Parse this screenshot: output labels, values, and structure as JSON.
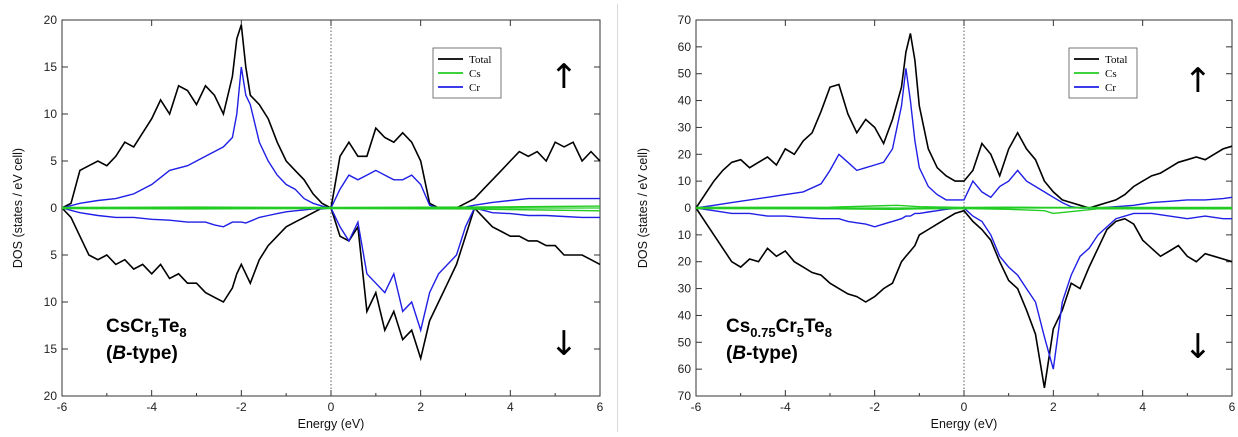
{
  "chart_data": [
    {
      "type": "line",
      "formula": {
        "base": "CsCr",
        "sub1": "5",
        "mid": "Te",
        "sub2": "8",
        "extra": ""
      },
      "subtitle": {
        "open": "(",
        "italic": "B",
        "rest": "-type)"
      },
      "xlabel": "Energy (eV)",
      "ylabel": "DOS (states / eV cell)",
      "xlim": [
        -6,
        6
      ],
      "ylim": [
        -20,
        20
      ],
      "x_ticks": [
        "-6",
        "-4",
        "-2",
        "0",
        "2",
        "4",
        "6"
      ],
      "y_ticks": [
        "20",
        "15",
        "10",
        "5",
        "0",
        "5",
        "10",
        "15",
        "20"
      ],
      "legend": [
        "Total",
        "Cs",
        "Cr"
      ],
      "spin_up_arrow": "↑",
      "spin_down_arrow": "↓",
      "colors": {
        "Total": "#000000",
        "Cs": "#22cc22",
        "Cr": "#1f1fe6"
      },
      "series": [
        {
          "name": "Total",
          "x": [
            -6,
            -5.8,
            -5.6,
            -5.4,
            -5.2,
            -5,
            -4.8,
            -4.6,
            -4.4,
            -4.2,
            -4,
            -3.8,
            -3.6,
            -3.4,
            -3.2,
            -3,
            -2.8,
            -2.6,
            -2.4,
            -2.2,
            -2.1,
            -2,
            -1.9,
            -1.8,
            -1.6,
            -1.4,
            -1.2,
            -1,
            -0.8,
            -0.6,
            -0.4,
            -0.2,
            0,
            0.2,
            0.4,
            0.6,
            0.8,
            1,
            1.2,
            1.4,
            1.6,
            1.8,
            2,
            2.2,
            2.4,
            2.6,
            2.8,
            3,
            3.2,
            3.4,
            3.6,
            3.8,
            4,
            4.2,
            4.4,
            4.6,
            4.8,
            5,
            5.2,
            5.4,
            5.6,
            5.8,
            6
          ],
          "up": [
            0,
            0.5,
            4,
            4.5,
            5,
            4.5,
            5.5,
            7,
            6.5,
            8,
            9.5,
            11.5,
            10,
            13,
            12.5,
            11,
            13,
            12,
            10,
            14,
            18,
            19.5,
            15,
            12,
            11,
            9.5,
            7,
            5,
            4,
            3,
            1.5,
            0.5,
            0,
            5.5,
            7,
            5.5,
            5.5,
            8.5,
            7.5,
            7,
            8,
            7,
            5,
            0.5,
            0,
            0,
            0,
            0.5,
            1,
            2,
            3,
            4,
            5,
            6,
            5.5,
            6,
            5,
            7,
            6.5,
            7,
            5,
            6,
            5
          ],
          "down": [
            0,
            -1,
            -3,
            -5,
            -5.5,
            -5,
            -6,
            -5.5,
            -6.5,
            -6,
            -7,
            -6,
            -7.5,
            -7,
            -8,
            -8,
            -9,
            -9.5,
            -10,
            -8.5,
            -7,
            -6,
            -7,
            -8,
            -5.5,
            -4,
            -3,
            -2,
            -1.5,
            -1,
            -0.5,
            0,
            0,
            -3,
            -3.5,
            -2,
            -11,
            -9,
            -13,
            -11,
            -14,
            -13,
            -16,
            -12,
            -10,
            -8,
            -6,
            -3,
            0,
            -1,
            -2,
            -2.5,
            -3,
            -3,
            -3.5,
            -3.5,
            -4,
            -4,
            -5,
            -5,
            -5,
            -5.5,
            -6
          ]
        },
        {
          "name": "Cs",
          "x": [
            -6,
            -3,
            0,
            3,
            6
          ],
          "up": [
            0.05,
            0.1,
            0.05,
            0.1,
            0.2
          ],
          "down": [
            -0.05,
            -0.1,
            -0.05,
            -0.1,
            -0.3
          ]
        },
        {
          "name": "Cr",
          "x": [
            -6,
            -5.6,
            -5.2,
            -4.8,
            -4.4,
            -4,
            -3.6,
            -3.2,
            -2.8,
            -2.6,
            -2.4,
            -2.2,
            -2.1,
            -2,
            -1.9,
            -1.8,
            -1.6,
            -1.4,
            -1.2,
            -1,
            -0.8,
            -0.6,
            -0.4,
            -0.2,
            0,
            0.2,
            0.4,
            0.6,
            0.8,
            1,
            1.2,
            1.4,
            1.6,
            1.8,
            2,
            2.2,
            2.4,
            2.6,
            2.8,
            3,
            3.2,
            3.6,
            4,
            4.4,
            4.8,
            5.2,
            5.6,
            6
          ],
          "up": [
            0,
            0.5,
            0.8,
            1,
            1.5,
            2.5,
            4,
            4.5,
            5.5,
            6,
            6.5,
            7.5,
            10,
            15,
            12,
            11,
            7,
            5,
            3.5,
            2.5,
            2,
            1,
            0.5,
            0.2,
            0,
            2,
            3.5,
            3,
            3.5,
            4,
            3.5,
            3,
            3,
            3.5,
            2.5,
            0.3,
            0,
            0,
            0,
            0.1,
            0.3,
            0.6,
            0.8,
            1,
            1,
            1,
            1,
            1
          ],
          "down": [
            0,
            -0.5,
            -0.8,
            -1,
            -1,
            -1.2,
            -1.3,
            -1.5,
            -1.5,
            -1.8,
            -2,
            -1.5,
            -1.5,
            -1.5,
            -1.6,
            -1.4,
            -1,
            -0.8,
            -0.6,
            -0.4,
            -0.3,
            -0.2,
            -0.1,
            -0.1,
            0,
            -2,
            -3.5,
            -1.5,
            -7,
            -8,
            -9,
            -7,
            -11,
            -10,
            -13,
            -9,
            -7,
            -6,
            -5,
            -2,
            0,
            -0.5,
            -0.6,
            -0.8,
            -0.8,
            -0.9,
            -1,
            -1
          ]
        }
      ]
    },
    {
      "type": "line",
      "formula": {
        "base": "Cs",
        "sub1": "0.75",
        "mid": "Cr",
        "sub2": "5",
        "extra": "Te",
        "sub3": "8"
      },
      "subtitle": {
        "open": "(",
        "italic": "B",
        "rest": "-type)"
      },
      "xlabel": "Energy (eV)",
      "ylabel": "DOS (states / eV cell)",
      "xlim": [
        -6,
        6
      ],
      "ylim": [
        -70,
        70
      ],
      "x_ticks": [
        "-6",
        "-4",
        "-2",
        "0",
        "2",
        "4",
        "6"
      ],
      "y_ticks": [
        "70",
        "60",
        "50",
        "40",
        "30",
        "20",
        "10",
        "0",
        "10",
        "20",
        "30",
        "40",
        "50",
        "60",
        "70"
      ],
      "legend": [
        "Total",
        "Cs",
        "Cr"
      ],
      "spin_up_arrow": "↑",
      "spin_down_arrow": "↓",
      "colors": {
        "Total": "#000000",
        "Cs": "#22cc22",
        "Cr": "#1f1fe6"
      },
      "series": [
        {
          "name": "Total",
          "x": [
            -6,
            -5.8,
            -5.6,
            -5.4,
            -5.2,
            -5,
            -4.8,
            -4.6,
            -4.4,
            -4.2,
            -4,
            -3.8,
            -3.6,
            -3.4,
            -3.2,
            -3,
            -2.8,
            -2.6,
            -2.4,
            -2.2,
            -2,
            -1.8,
            -1.6,
            -1.4,
            -1.3,
            -1.2,
            -1.1,
            -1,
            -0.8,
            -0.6,
            -0.4,
            -0.2,
            0,
            0.2,
            0.4,
            0.6,
            0.8,
            1,
            1.2,
            1.4,
            1.6,
            1.8,
            2,
            2.2,
            2.4,
            2.6,
            2.8,
            3,
            3.2,
            3.4,
            3.6,
            3.8,
            4,
            4.2,
            4.4,
            4.6,
            4.8,
            5,
            5.2,
            5.4,
            5.6,
            5.8,
            6
          ],
          "up": [
            0,
            5,
            10,
            14,
            17,
            18,
            15,
            17,
            19,
            16,
            22,
            20,
            25,
            28,
            36,
            45,
            46,
            35,
            28,
            33,
            30,
            24,
            33,
            45,
            58,
            65,
            55,
            38,
            22,
            15,
            12,
            10,
            10,
            14,
            24,
            20,
            12,
            22,
            28,
            22,
            18,
            10,
            6,
            3,
            2,
            1,
            0,
            1,
            2,
            3,
            5,
            8,
            10,
            12,
            13,
            15,
            17,
            18,
            19,
            18,
            20,
            22,
            23
          ],
          "down": [
            0,
            -5,
            -10,
            -15,
            -20,
            -22,
            -19,
            -20,
            -15,
            -18,
            -16,
            -20,
            -22,
            -24,
            -25,
            -28,
            -30,
            -32,
            -33,
            -35,
            -33,
            -30,
            -28,
            -20,
            -18,
            -16,
            -14,
            -10,
            -8,
            -6,
            -4,
            -2,
            -1,
            -5,
            -8,
            -12,
            -20,
            -27,
            -30,
            -38,
            -47,
            -67,
            -45,
            -38,
            -28,
            -30,
            -22,
            -15,
            -8,
            -5,
            -4,
            -6,
            -12,
            -15,
            -18,
            -16,
            -14,
            -18,
            -20,
            -17,
            -18,
            -19,
            -20
          ]
        },
        {
          "name": "Cs",
          "x": [
            -6,
            -3,
            -1.5,
            -1,
            0,
            1,
            1.8,
            2,
            3,
            6
          ],
          "up": [
            0.2,
            0.3,
            1,
            0.5,
            0.2,
            0.3,
            0.2,
            0.2,
            0.2,
            0.2
          ],
          "down": [
            -0.2,
            -0.3,
            -0.5,
            -0.3,
            -0.2,
            -0.5,
            -1,
            -2,
            -0.3,
            -0.3
          ]
        },
        {
          "name": "Cr",
          "x": [
            -6,
            -5.6,
            -5.2,
            -4.8,
            -4.4,
            -4,
            -3.6,
            -3.2,
            -3,
            -2.8,
            -2.6,
            -2.4,
            -2.2,
            -2,
            -1.8,
            -1.6,
            -1.4,
            -1.3,
            -1.2,
            -1.1,
            -1,
            -0.8,
            -0.6,
            -0.4,
            -0.2,
            0,
            0.2,
            0.4,
            0.6,
            0.8,
            1,
            1.2,
            1.4,
            1.6,
            1.8,
            2,
            2.2,
            2.4,
            2.6,
            2.8,
            3,
            3.4,
            3.8,
            4.2,
            4.6,
            5,
            5.4,
            5.8,
            6
          ],
          "up": [
            0,
            1,
            2,
            3,
            4,
            5,
            6,
            9,
            14,
            20,
            17,
            14,
            15,
            16,
            17,
            22,
            38,
            52,
            40,
            25,
            15,
            8,
            5,
            3,
            3,
            3,
            10,
            6,
            4,
            8,
            10,
            14,
            10,
            8,
            6,
            4,
            2,
            0.5,
            0,
            0,
            0,
            0.5,
            1,
            2,
            2.5,
            3,
            3,
            3.5,
            4
          ],
          "down": [
            0,
            -1,
            -2,
            -2,
            -3,
            -3,
            -3.5,
            -4,
            -4,
            -4,
            -5,
            -5.5,
            -6,
            -7,
            -6,
            -5,
            -4,
            -3,
            -3,
            -2,
            -2,
            -1.5,
            -1,
            -0.5,
            -0.2,
            0,
            -3,
            -5,
            -10,
            -18,
            -22,
            -25,
            -30,
            -35,
            -48,
            -60,
            -35,
            -25,
            -18,
            -15,
            -10,
            -4,
            -2,
            -2,
            -3,
            -4,
            -3,
            -4,
            -4
          ]
        }
      ]
    }
  ]
}
